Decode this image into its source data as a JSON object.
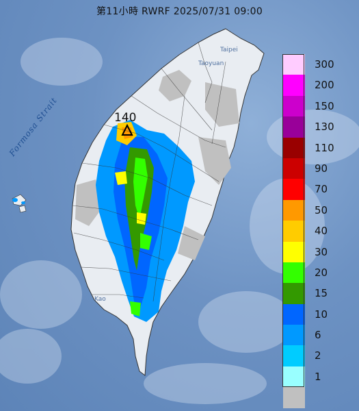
{
  "title": "第11小時  RWRF 2025/07/31 09:00",
  "labels": {
    "strait": "Formosa Strait",
    "taipei": "Taipei",
    "taoyuan": "Taoyuan",
    "kao": "Kao"
  },
  "max_marker": {
    "value": "140"
  },
  "legend": [
    {
      "label": "300",
      "color": "#ffccff"
    },
    {
      "label": "200",
      "color": "#ff00ff"
    },
    {
      "label": "150",
      "color": "#cc00cc"
    },
    {
      "label": "130",
      "color": "#990099"
    },
    {
      "label": "110",
      "color": "#990000"
    },
    {
      "label": "90",
      "color": "#cc0000"
    },
    {
      "label": "70",
      "color": "#ff0000"
    },
    {
      "label": "50",
      "color": "#ff9900"
    },
    {
      "label": "40",
      "color": "#ffcc00"
    },
    {
      "label": "30",
      "color": "#ffff00"
    },
    {
      "label": "20",
      "color": "#33ff00"
    },
    {
      "label": "15",
      "color": "#339900"
    },
    {
      "label": "10",
      "color": "#0066ff"
    },
    {
      "label": "6",
      "color": "#0099ff"
    },
    {
      "label": "2",
      "color": "#00ccff"
    },
    {
      "label": "1",
      "color": "#99ffff"
    },
    {
      "label": "",
      "color": "#c0c0c0"
    }
  ]
}
